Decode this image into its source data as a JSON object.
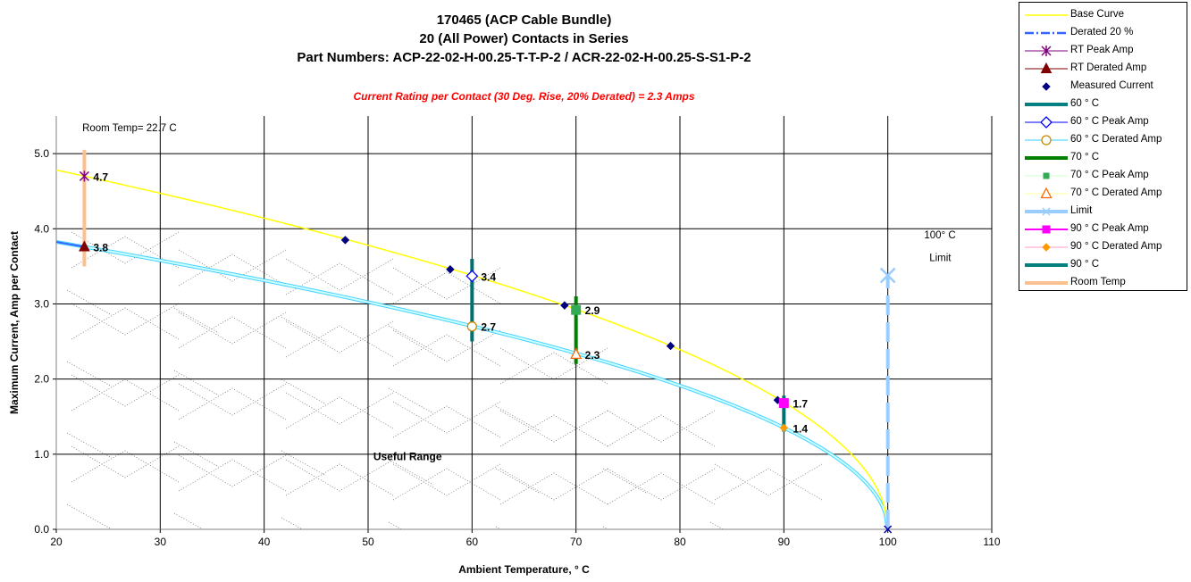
{
  "chart_data": {
    "type": "line",
    "title_lines": [
      "170465 (ACP Cable Bundle)",
      "20 (All Power) Contacts in Series",
      "Part Numbers: ACP-22-02-H-00.25-T-T-P-2 / ACR-22-02-H-00.25-S-S1-P-2"
    ],
    "subtitle": "Current Rating per Contact (30 Deg. Rise, 20% Derated) = 2.3 Amps",
    "xlabel": "Ambient Temperature,  ° C",
    "ylabel": "Maximum Current, Amp per Contact",
    "xlim": [
      20,
      110
    ],
    "ylim": [
      0,
      5.5
    ],
    "x_ticks": [
      20,
      30,
      40,
      50,
      60,
      70,
      80,
      90,
      100,
      110
    ],
    "y_ticks": [
      "0.0",
      "1.0",
      "2.0",
      "3.0",
      "4.0",
      "5.0"
    ],
    "grid": true,
    "legend_position": "right",
    "base_curve": {
      "name": "Base Curve",
      "color": "#ffff00",
      "max_temp": 100,
      "x_at_zero": 22.7,
      "value_at_zero": 4.7,
      "power": 0.5
    },
    "derated_curve": {
      "name": "Derated 20 %",
      "color": "#99ffff",
      "factor": 0.8
    },
    "measured_current": {
      "name": "Measured Current",
      "color": "#000080",
      "x": [
        47.8,
        57.9,
        68.9,
        79.1,
        89.4
      ],
      "y": [
        3.85,
        3.46,
        2.98,
        2.44,
        1.72
      ]
    },
    "vertical_bars": [
      {
        "name": "Room Temp",
        "x": 22.7,
        "y_range": [
          3.5,
          5.05
        ],
        "color": "#fac090"
      },
      {
        "name": "60 ° C",
        "x": 60,
        "y_range": [
          2.5,
          3.6
        ],
        "color": "#007070"
      },
      {
        "name": "70 ° C",
        "x": 70,
        "y_range": [
          2.2,
          3.1
        ],
        "color": "#008000"
      },
      {
        "name": "90 ° C",
        "x": 90,
        "y_range": [
          1.3,
          1.78
        ],
        "color": "#007070"
      }
    ],
    "limit": {
      "name": "Limit",
      "x": 100,
      "y_range": [
        0,
        3.38
      ],
      "color": "#99ccff"
    },
    "annotated_points": [
      {
        "series": "RT Peak Amp",
        "x": 22.7,
        "y": 4.7,
        "label": "4.7",
        "marker": "star",
        "color": "#800080"
      },
      {
        "series": "RT Derated Amp",
        "x": 22.7,
        "y": 3.76,
        "label": "3.8",
        "marker": "triangle",
        "color": "#800000"
      },
      {
        "series": "60 ° C Peak Amp",
        "x": 60,
        "y": 3.37,
        "label": "3.4",
        "marker": "diamond-open",
        "color": "#0000ff"
      },
      {
        "series": "60 ° C Derated Amp",
        "x": 60,
        "y": 2.7,
        "label": "2.7",
        "marker": "circle-open",
        "color": "#cc8800"
      },
      {
        "series": "70 ° C Peak Amp",
        "x": 70,
        "y": 2.92,
        "label": "2.9",
        "marker": "square",
        "color": "#33aa55"
      },
      {
        "series": "70 ° C Derated Amp",
        "x": 70,
        "y": 2.33,
        "label": "2.3",
        "marker": "triangle-open",
        "color": "#ff6600"
      },
      {
        "series": "90 ° C Peak Amp",
        "x": 90,
        "y": 1.68,
        "label": "1.7",
        "marker": "square",
        "color": "#ff00ff"
      },
      {
        "series": "90 ° C Derated Amp",
        "x": 90,
        "y": 1.35,
        "label": "1.4",
        "marker": "diamond",
        "color": "#ff9900"
      }
    ],
    "annotations": [
      {
        "text": "Room Temp= 22.7 C",
        "x": 22.5,
        "y": 5.3,
        "bold": false
      },
      {
        "text": "100° C",
        "x": 103.5,
        "y": 3.87,
        "bold": false
      },
      {
        "text": "Limit",
        "x": 104,
        "y": 3.57,
        "bold": false
      },
      {
        "text": "Useful Range",
        "x": 50.5,
        "y": 0.92,
        "bold": true
      }
    ]
  },
  "legend": [
    {
      "label": "Base Curve",
      "style": "line",
      "color": "#ffff00",
      "width": 1.5,
      "marker": "none"
    },
    {
      "label": "Derated 20 %",
      "style": "dashdot",
      "color": "#3366ff",
      "width": 2.5,
      "marker": "none"
    },
    {
      "label": "RT Peak Amp",
      "style": "line",
      "color": "#800080",
      "width": 1,
      "marker": "star"
    },
    {
      "label": "RT Derated Amp",
      "style": "line",
      "color": "#800000",
      "width": 1,
      "marker": "triangle"
    },
    {
      "label": "Measured Current",
      "style": "none",
      "color": "#000080",
      "width": 1,
      "marker": "diamond"
    },
    {
      "label": "60 ° C",
      "style": "line",
      "color": "#008080",
      "width": 4,
      "marker": "none"
    },
    {
      "label": "60  ° C Peak Amp",
      "style": "line",
      "color": "#0000ff",
      "width": 1,
      "marker": "diamond-open"
    },
    {
      "label": "60  ° C Derated Amp",
      "style": "line",
      "color": "#33ccff",
      "width": 1,
      "marker": "circle-open"
    },
    {
      "label": "70  ° C",
      "style": "line",
      "color": "#008000",
      "width": 4,
      "marker": "none"
    },
    {
      "label": "70  ° C Peak Amp",
      "style": "line",
      "color": "#ccffcc",
      "width": 1,
      "marker": "square-green"
    },
    {
      "label": "70  ° C Derated Amp",
      "style": "line",
      "color": "#ffff99",
      "width": 1,
      "marker": "triangle-open"
    },
    {
      "label": "Limit",
      "style": "line",
      "color": "#99ccff",
      "width": 4,
      "marker": "star-light"
    },
    {
      "label": "90  ° C Peak Amp",
      "style": "line",
      "color": "#ff00ff",
      "width": 2,
      "marker": "square-magenta"
    },
    {
      "label": "90  ° C Derated Amp",
      "style": "line",
      "color": "#ff99cc",
      "width": 1,
      "marker": "diamond-orange"
    },
    {
      "label": "90  ° C",
      "style": "line",
      "color": "#008080",
      "width": 4,
      "marker": "none"
    },
    {
      "label": "Room Temp",
      "style": "line",
      "color": "#fac090",
      "width": 4,
      "marker": "none"
    }
  ]
}
